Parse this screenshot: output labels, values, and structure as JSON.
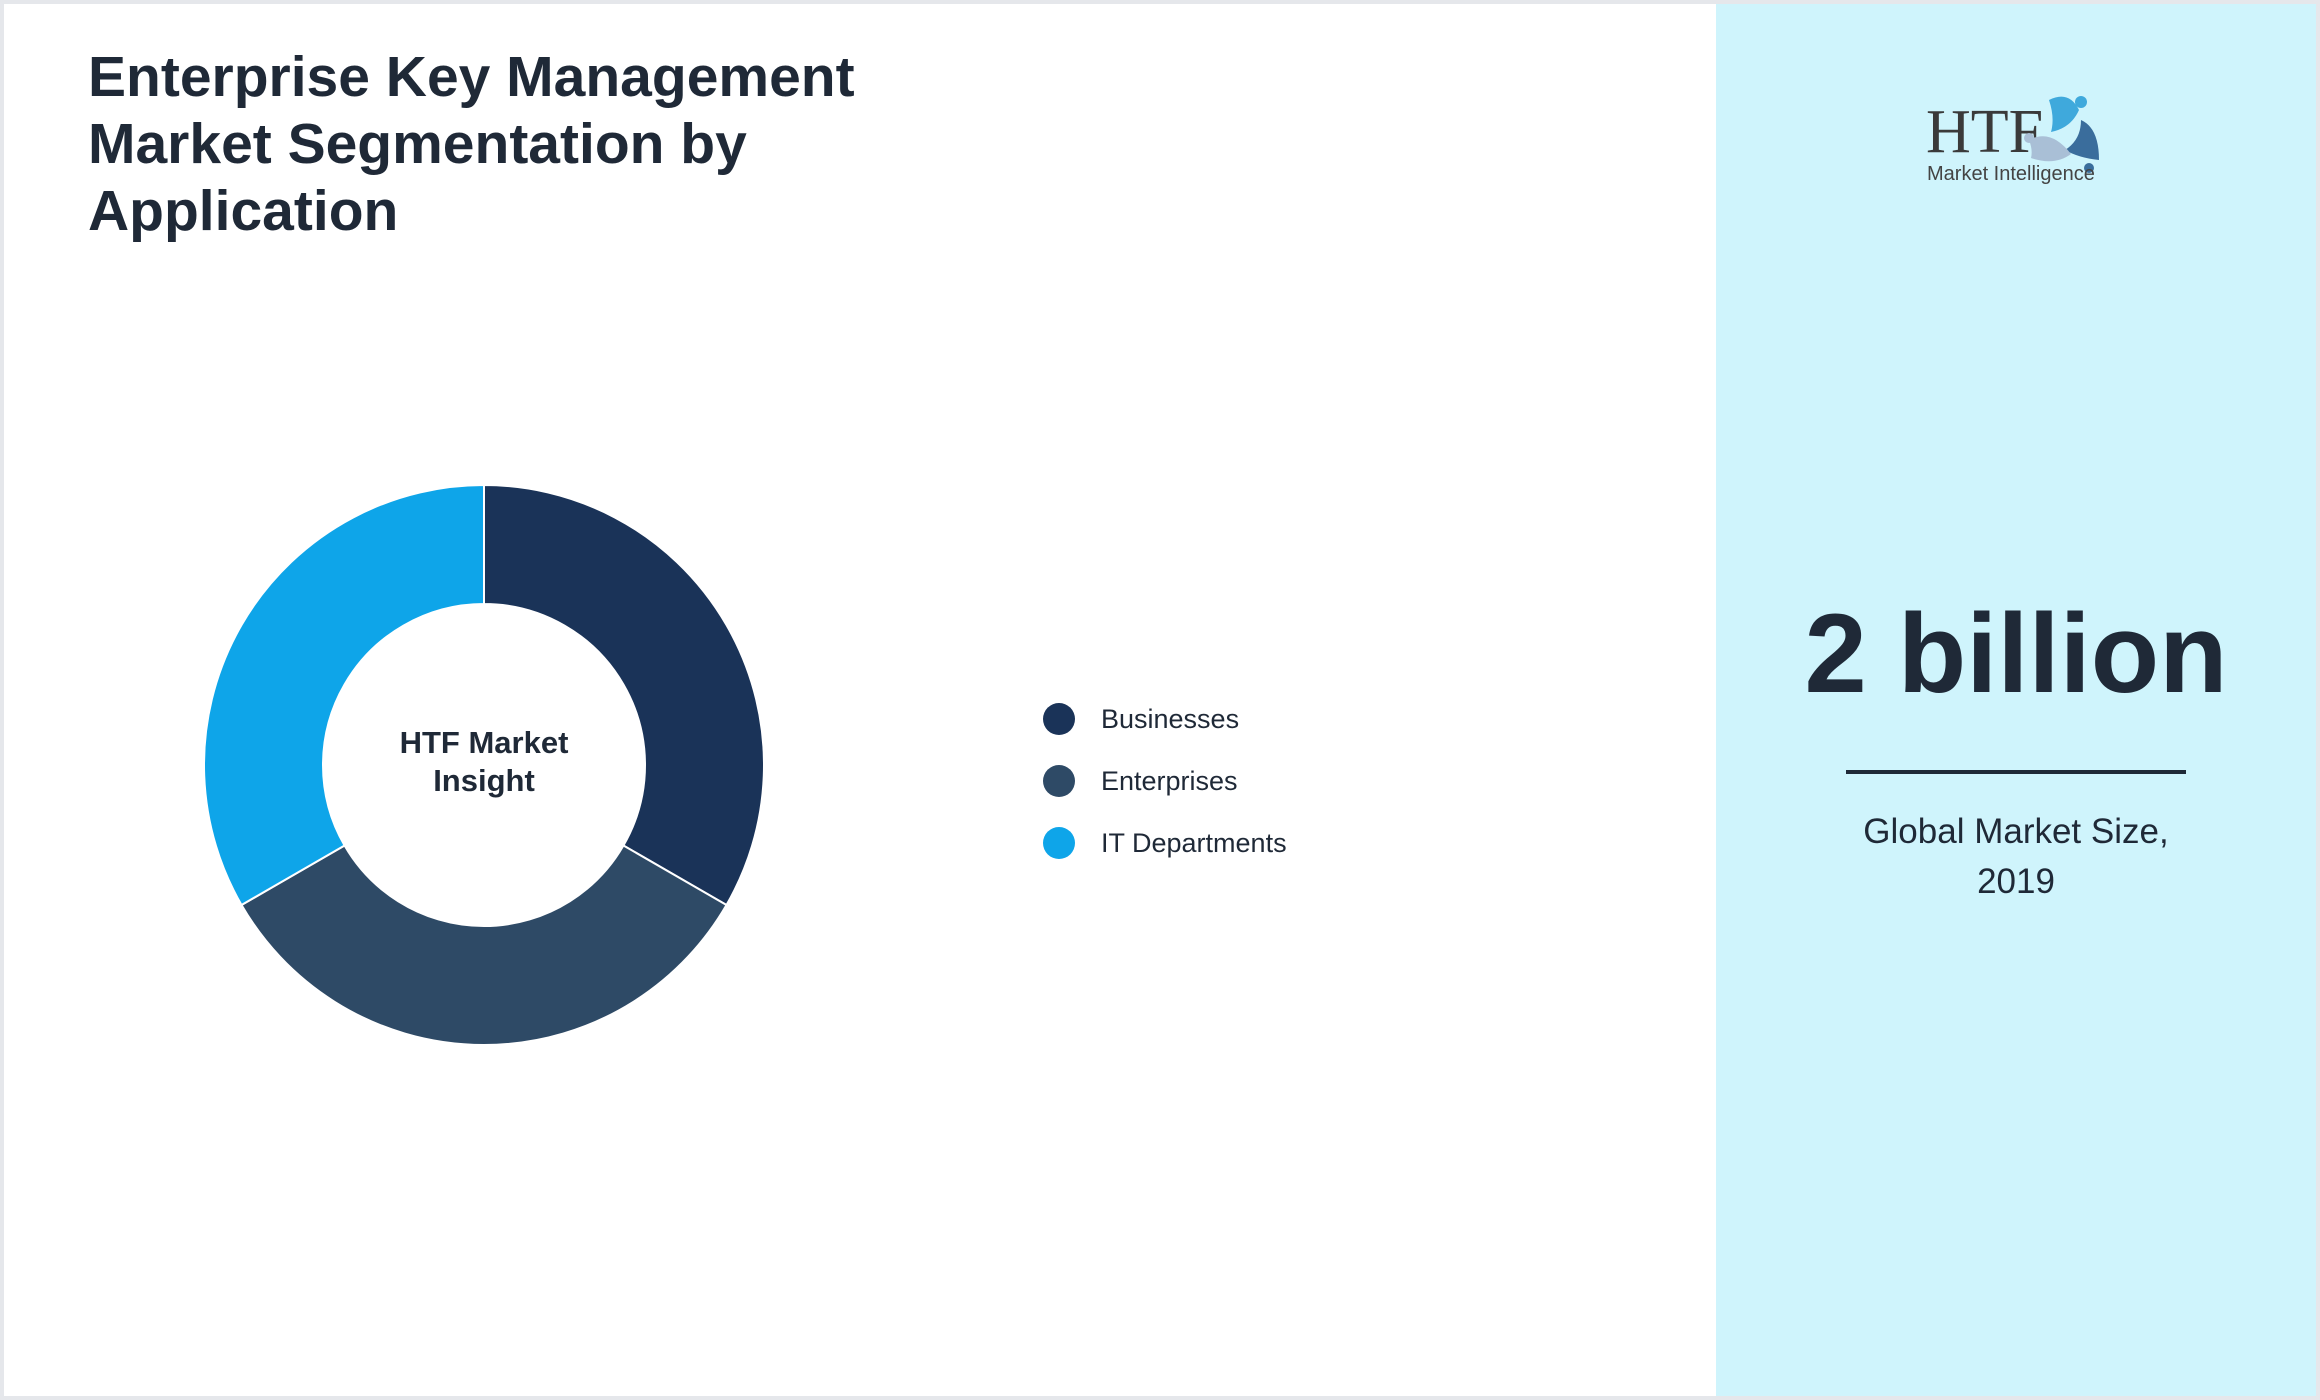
{
  "title": "Enterprise Key Management Market Segmentation by Application",
  "chart_data": {
    "type": "pie",
    "variant": "donut",
    "center_label": [
      "HTF Market",
      "Insight"
    ],
    "categories": [
      "Businesses",
      "Enterprises",
      "IT Departments"
    ],
    "values": [
      33.3,
      33.3,
      33.3
    ],
    "colors": [
      "#1a3358",
      "#2e4a66",
      "#0ea5e9"
    ],
    "legend_position": "right"
  },
  "side": {
    "logo": {
      "main": "HTF",
      "sub": "Market Intelligence"
    },
    "value": "2 billion",
    "caption_line1": "Global Market Size,",
    "caption_line2": "2019"
  }
}
